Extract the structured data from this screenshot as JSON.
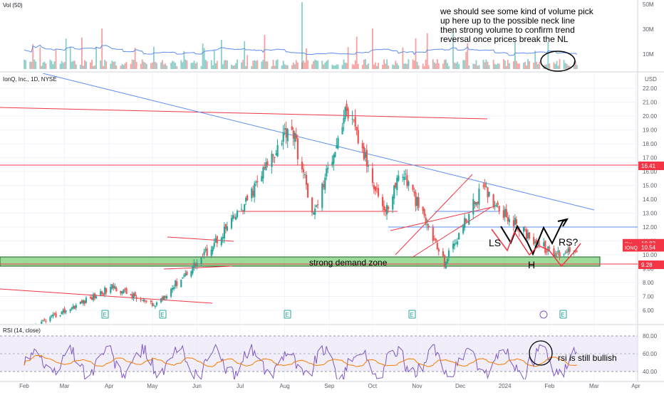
{
  "colors": {
    "up": "#26a69a",
    "down": "#ef5350",
    "trendline": "#5b8def",
    "red_line": "#f23645",
    "zone_fill": "#7ccf7a",
    "zone_border": "#1b5e20",
    "rsi_line": "#7e57c2",
    "rsi_ma": "#f57c00",
    "rsi_band": "#ede7f6",
    "vol_ma": "#5b8def",
    "grid": "#f0f3fa",
    "axis": "#5a5e69"
  },
  "chart_data": [
    {
      "type": "bar",
      "pane": "volume",
      "title": "Vol (50)",
      "y_ticks": [
        "50M",
        "30M",
        "10M"
      ],
      "annotation": "we should see some kind of volume pick up here up to the possible neck line then strong volume to confirm trend reversal once prices break the NL"
    },
    {
      "type": "candlestick",
      "pane": "price",
      "title": "IonQ, Inc., 1D, NYSE",
      "currency": "USD",
      "ylim": [
        5.6,
        22.4
      ],
      "y_ticks": [
        6,
        7,
        8,
        9,
        10,
        11,
        12,
        13,
        14,
        15,
        16,
        17,
        18,
        19,
        20,
        21,
        22
      ],
      "y_tick_labels": [
        "6.00",
        "7.00",
        "8.00",
        "9.00",
        "10.00",
        "11.00",
        "12.00",
        "13.00",
        "14.00",
        "15.00",
        "16.00",
        "17.00",
        "18.00",
        "19.00",
        "20.00",
        "21.00",
        "22.00"
      ],
      "series": [
        {
          "name": "IONQ",
          "close_key_points": [
            {
              "date": "Feb 2023",
              "value": 4.5
            },
            {
              "date": "Apr 2023",
              "value": 7.7
            },
            {
              "date": "May 2023",
              "value": 6.3
            },
            {
              "date": "Jun 2023",
              "value": 10.0
            },
            {
              "date": "Jul 2023",
              "value": 13.5
            },
            {
              "date": "Aug 2023",
              "value": 19.6
            },
            {
              "date": "Aug 2023",
              "value": 12.8
            },
            {
              "date": "Sep 2023",
              "value": 20.5
            },
            {
              "date": "Oct 2023",
              "value": 13.0
            },
            {
              "date": "Oct 2023",
              "value": 16.2
            },
            {
              "date": "Nov 2023",
              "value": 9.4
            },
            {
              "date": "Dec 2023",
              "value": 14.8
            },
            {
              "date": "Jan 2024",
              "value": 11.8
            },
            {
              "date": "Feb 2024",
              "value": 10.0
            },
            {
              "date": "Feb 2024",
              "value": 10.54
            }
          ]
        }
      ],
      "price_badges": [
        {
          "label": "16.41",
          "value": 16.41,
          "color": "#f23645"
        },
        {
          "label": "10.83",
          "value": 10.83,
          "color": "#f23645",
          "tag": "Pre"
        },
        {
          "label": "10.54",
          "value": 10.54,
          "color": "#f23645",
          "tag": "IONQ"
        },
        {
          "label": "9.28",
          "value": 9.28,
          "color": "#f23645"
        }
      ],
      "zone_label": "strong demand zone",
      "pattern_labels": [
        "LS",
        "H",
        "RS?"
      ],
      "earnings_marker": "E"
    },
    {
      "type": "line",
      "pane": "rsi",
      "title": "RSI (14, close)",
      "ylim": [
        25,
        82
      ],
      "y_ticks": [
        80,
        60,
        40
      ],
      "y_tick_labels": [
        "80.00",
        "60.00",
        "40.00"
      ],
      "annotation": "rsi is still bullish"
    }
  ],
  "x_axis_labels": [
    "Feb",
    "Mar",
    "Apr",
    "May",
    "Jun",
    "Jul",
    "Aug",
    "Sep",
    "Oct",
    "Nov",
    "Dec",
    "2024",
    "Feb",
    "Mar",
    "Apr"
  ]
}
